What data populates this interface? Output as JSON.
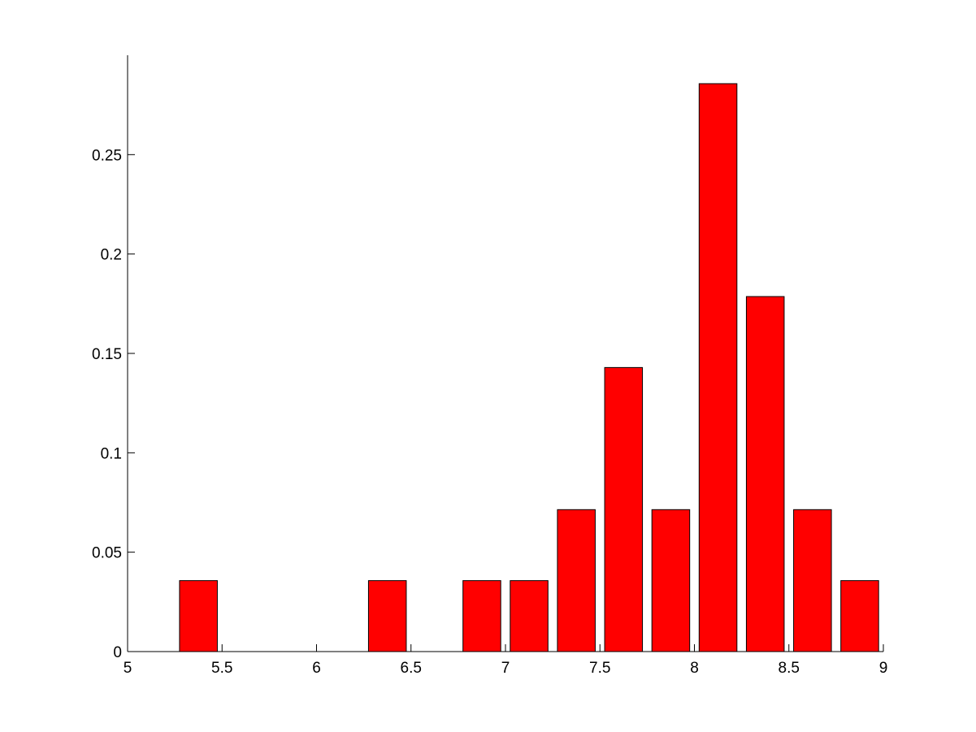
{
  "chart_data": {
    "type": "bar",
    "x": [
      5.375,
      6.375,
      6.875,
      7.125,
      7.375,
      7.625,
      7.875,
      8.125,
      8.375,
      8.625,
      8.875
    ],
    "values": [
      0.0357,
      0.0357,
      0.0357,
      0.0357,
      0.0714,
      0.1429,
      0.0714,
      0.2857,
      0.1786,
      0.0714,
      0.0357
    ],
    "bar_width": 0.2,
    "color": "#ff0000",
    "xlim": [
      5,
      9
    ],
    "xticks": [
      5,
      5.5,
      6,
      6.5,
      7,
      7.5,
      8,
      8.5,
      9
    ],
    "ylim": [
      0,
      0.3
    ],
    "yticks": [
      0,
      0.05,
      0.1,
      0.15,
      0.2,
      0.25
    ],
    "grid": false
  }
}
